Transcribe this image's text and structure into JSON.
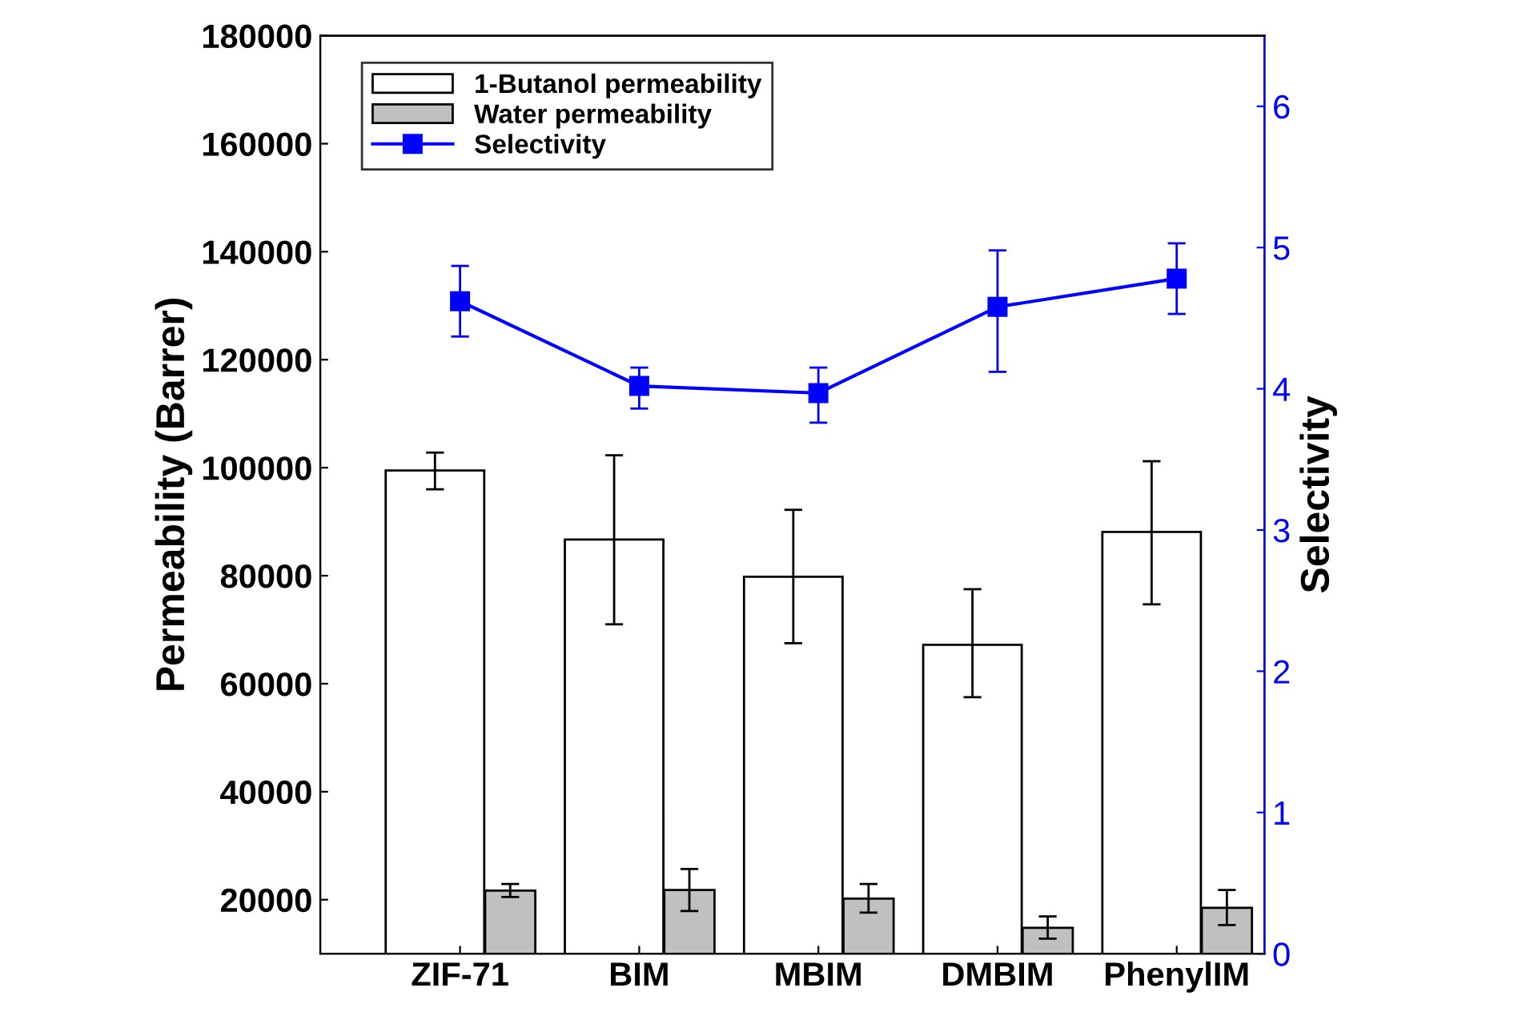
{
  "chart_data": {
    "type": "bar",
    "categories": [
      "ZIF-71",
      "BIM",
      "MBIM",
      "DMBIM",
      "PhenylIM"
    ],
    "ylabel": "Permeability (Barrer)",
    "y2label": "Selectivity",
    "ylim": [
      10000,
      180000
    ],
    "yticks": [
      20000,
      40000,
      60000,
      80000,
      100000,
      120000,
      140000,
      160000,
      180000
    ],
    "y2lim": [
      0,
      6.5
    ],
    "y2ticks": [
      0,
      1,
      2,
      3,
      4,
      5,
      6
    ],
    "legend": "top left",
    "grid": false,
    "series": [
      {
        "name": "1-Butanol permeability",
        "color": "#ffffff",
        "values": [
          99500,
          86700,
          79800,
          67200,
          88100
        ],
        "errors": [
          [
            96000,
            102800
          ],
          [
            71000,
            102300
          ],
          [
            67500,
            92200
          ],
          [
            57500,
            77500
          ],
          [
            74700,
            101200
          ]
        ]
      },
      {
        "name": "Water permeability",
        "color": "#c0c0c0",
        "values": [
          21700,
          21800,
          20200,
          14800,
          18500
        ],
        "errors": [
          [
            20500,
            22900
          ],
          [
            17900,
            25700
          ],
          [
            17600,
            22900
          ],
          [
            12800,
            16900
          ],
          [
            15300,
            21800
          ]
        ]
      },
      {
        "name": "Selectivity",
        "type": "line",
        "axis": "y2",
        "color": "#0000ff",
        "marker": "square",
        "line_style": "solid",
        "values": [
          4.62,
          4.02,
          3.97,
          4.58,
          4.78
        ],
        "errors": [
          [
            4.37,
            4.87
          ],
          [
            3.86,
            4.15
          ],
          [
            3.76,
            4.15
          ],
          [
            4.12,
            4.98
          ],
          [
            4.53,
            5.03
          ]
        ]
      }
    ]
  }
}
